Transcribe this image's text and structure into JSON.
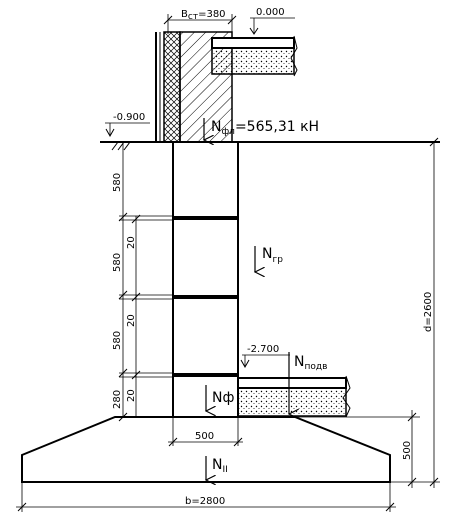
{
  "labels": {
    "wall_thickness": "B",
    "wall_thickness_sub": "ст",
    "wall_thickness_value": "=380",
    "floor_level": "0.000",
    "ground_level": "-0.900",
    "load_top": "N",
    "load_top_sub": "фл",
    "load_top_value": "=565,31 кН",
    "load_blocks": "N",
    "load_blocks_sub": "гр",
    "load_floor": "N",
    "load_floor_sub": "подв",
    "basement_level": "-2.700",
    "load_foundation": "Nф",
    "load_base": "N",
    "load_base_sub": "II",
    "block_height_1": "580",
    "block_height_2": "580",
    "block_height_3": "580",
    "joint_1": "20",
    "joint_2": "20",
    "joint_3": "20",
    "base_block": "280",
    "wall_width": "500",
    "slab_height": "500",
    "depth": "d=2600",
    "slab_width": "b=2800"
  }
}
